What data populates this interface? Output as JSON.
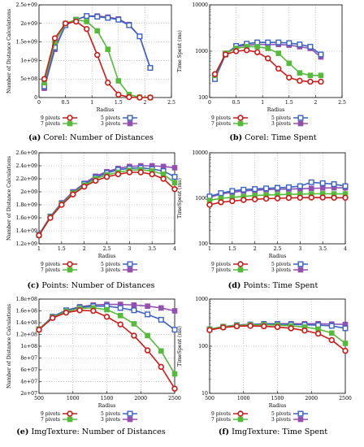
{
  "colors": {
    "9 pivots": "#cc1a1a",
    "7 pivots": "#55bb3a",
    "5 pivots": "#3a62c4",
    "3 pivots": "#9450b0",
    "axis": "#000000",
    "grid": "#9a9a9a"
  },
  "marker_shapes": {
    "9 pivots": "circle",
    "7 pivots": "square-filled",
    "5 pivots": "square-open",
    "3 pivots": "square-filled"
  },
  "chart_data": [
    {
      "id": "a",
      "type": "line",
      "caption_label": "(a)",
      "caption_text": "Corel: Number of Distances",
      "xlabel": "Radius",
      "ylabel": "Number of Distance Calculations",
      "xlim": [
        0,
        2.5
      ],
      "ylim": [
        0,
        2500000000
      ],
      "xscale": "linear",
      "yscale": "linear",
      "xticks": [
        0,
        0.5,
        1,
        1.5,
        2,
        2.5
      ],
      "xtick_labels": [
        "0",
        "0.5",
        "1",
        "1.5",
        "2",
        "2.5"
      ],
      "yticks": [
        0,
        500000000,
        1000000000,
        1500000000,
        2000000000,
        2500000000
      ],
      "ytick_labels": [
        "0",
        "5e+08",
        "1e+09",
        "1.5e+09",
        "2e+09",
        "2.5e+09"
      ],
      "grid": true,
      "legend_position": "bottom",
      "series": [
        {
          "name": "9 pivots",
          "x": [
            0.1,
            0.3,
            0.5,
            0.7,
            0.9,
            1.1,
            1.3,
            1.5,
            1.7,
            1.9,
            2.1
          ],
          "y": [
            500000000,
            1600000000,
            2000000000,
            2050000000,
            1850000000,
            1150000000,
            400000000,
            80000000,
            10000000,
            0,
            0
          ]
        },
        {
          "name": "7 pivots",
          "x": [
            0.1,
            0.3,
            0.5,
            0.7,
            0.9,
            1.1,
            1.3,
            1.5,
            1.7,
            1.9,
            2.1
          ],
          "y": [
            400000000,
            1500000000,
            2000000000,
            2100000000,
            2050000000,
            1800000000,
            1300000000,
            450000000,
            80000000,
            10000000,
            0
          ]
        },
        {
          "name": "5 pivots",
          "x": [
            0.1,
            0.3,
            0.5,
            0.7,
            0.9,
            1.1,
            1.3,
            1.5,
            1.7,
            1.9,
            2.1
          ],
          "y": [
            300000000,
            1350000000,
            1950000000,
            2100000000,
            2200000000,
            2180000000,
            2150000000,
            2100000000,
            1950000000,
            1650000000,
            800000000
          ]
        },
        {
          "name": "3 pivots",
          "x": [
            0.1,
            0.3,
            0.5,
            0.7,
            0.9,
            1.1,
            1.3,
            1.5,
            1.7,
            1.9,
            2.1
          ],
          "y": [
            250000000,
            1300000000,
            1950000000,
            2100000000,
            2200000000,
            2200000000,
            2170000000,
            2120000000,
            1970000000,
            1650000000,
            800000000
          ]
        }
      ]
    },
    {
      "id": "b",
      "type": "line",
      "caption_label": "(b)",
      "caption_text": "Corel: Time Spent",
      "xlabel": "Radius",
      "ylabel": "Time Spent (ms)",
      "xlim": [
        0,
        2.5
      ],
      "ylim": [
        100,
        10000
      ],
      "xscale": "linear",
      "yscale": "log",
      "xticks": [
        0,
        0.5,
        1,
        1.5,
        2,
        2.5
      ],
      "xtick_labels": [
        "0",
        "0.5",
        "1",
        "1.5",
        "2",
        "2.5"
      ],
      "yticks": [
        100,
        1000,
        10000
      ],
      "ytick_labels": [
        "100",
        "1000",
        "10000"
      ],
      "grid": true,
      "legend_position": "bottom",
      "series": [
        {
          "name": "9 pivots",
          "x": [
            0.1,
            0.3,
            0.5,
            0.7,
            0.9,
            1.1,
            1.3,
            1.5,
            1.7,
            1.9,
            2.1
          ],
          "y": [
            320,
            850,
            1000,
            1050,
            950,
            700,
            420,
            270,
            230,
            220,
            220
          ]
        },
        {
          "name": "7 pivots",
          "x": [
            0.1,
            0.3,
            0.5,
            0.7,
            0.9,
            1.1,
            1.3,
            1.5,
            1.7,
            1.9,
            2.1
          ],
          "y": [
            300,
            900,
            1150,
            1250,
            1250,
            1150,
            900,
            550,
            340,
            300,
            300
          ]
        },
        {
          "name": "5 pivots",
          "x": [
            0.1,
            0.3,
            0.5,
            0.7,
            0.9,
            1.1,
            1.3,
            1.5,
            1.7,
            1.9,
            2.1
          ],
          "y": [
            250,
            850,
            1300,
            1450,
            1550,
            1550,
            1550,
            1500,
            1400,
            1250,
            850
          ]
        },
        {
          "name": "3 pivots",
          "x": [
            0.1,
            0.3,
            0.5,
            0.7,
            0.9,
            1.1,
            1.3,
            1.5,
            1.7,
            1.9,
            2.1
          ],
          "y": [
            280,
            900,
            1250,
            1350,
            1400,
            1400,
            1400,
            1350,
            1250,
            1150,
            750
          ]
        }
      ]
    },
    {
      "id": "c",
      "type": "line",
      "caption_label": "(c)",
      "caption_text": "Points: Number of Distances",
      "xlabel": "Radius",
      "ylabel": "Number of Distance Calculations",
      "xlim": [
        1,
        4
      ],
      "ylim": [
        1200000000,
        2600000000
      ],
      "xscale": "linear",
      "yscale": "linear",
      "xticks": [
        1,
        1.5,
        2,
        2.5,
        3,
        3.5,
        4
      ],
      "xtick_labels": [
        "1",
        "1.5",
        "2",
        "2.5",
        "3",
        "3.5",
        "4"
      ],
      "yticks": [
        1200000000,
        1400000000,
        1600000000,
        1800000000,
        2000000000,
        2200000000,
        2400000000,
        2600000000
      ],
      "ytick_labels": [
        "1.2e+09",
        "1.4e+09",
        "1.6e+09",
        "1.8e+09",
        "2e+09",
        "2.2e+09",
        "2.4e+09",
        "2.6e+09"
      ],
      "grid": true,
      "legend_position": "bottom",
      "series": [
        {
          "name": "9 pivots",
          "x": [
            1,
            1.25,
            1.5,
            1.75,
            2,
            2.25,
            2.5,
            2.75,
            3,
            3.25,
            3.5,
            3.75,
            4
          ],
          "y": [
            1330000000,
            1600000000,
            1800000000,
            1960000000,
            2080000000,
            2170000000,
            2230000000,
            2270000000,
            2300000000,
            2300000000,
            2270000000,
            2200000000,
            2040000000
          ]
        },
        {
          "name": "7 pivots",
          "x": [
            1,
            1.25,
            1.5,
            1.75,
            2,
            2.25,
            2.5,
            2.75,
            3,
            3.25,
            3.5,
            3.75,
            4
          ],
          "y": [
            1330000000,
            1610000000,
            1810000000,
            1980000000,
            2100000000,
            2200000000,
            2260000000,
            2300000000,
            2330000000,
            2340000000,
            2320000000,
            2270000000,
            2140000000
          ]
        },
        {
          "name": "5 pivots",
          "x": [
            1,
            1.25,
            1.5,
            1.75,
            2,
            2.25,
            2.5,
            2.75,
            3,
            3.25,
            3.5,
            3.75,
            4
          ],
          "y": [
            1340000000,
            1620000000,
            1820000000,
            1990000000,
            2120000000,
            2220000000,
            2290000000,
            2340000000,
            2360000000,
            2370000000,
            2350000000,
            2320000000,
            2230000000
          ]
        },
        {
          "name": "3 pivots",
          "x": [
            1,
            1.25,
            1.5,
            1.75,
            2,
            2.25,
            2.5,
            2.75,
            3,
            3.25,
            3.5,
            3.75,
            4
          ],
          "y": [
            1340000000,
            1620000000,
            1830000000,
            2000000000,
            2130000000,
            2240000000,
            2310000000,
            2360000000,
            2390000000,
            2400000000,
            2400000000,
            2390000000,
            2370000000
          ]
        }
      ]
    },
    {
      "id": "d",
      "type": "line",
      "caption_label": "(d)",
      "caption_text": "Points: Time Spent",
      "xlabel": "Radius",
      "ylabel": "TimeSpent (ms)",
      "xlim": [
        1,
        4
      ],
      "ylim": [
        100,
        10000
      ],
      "xscale": "linear",
      "yscale": "log",
      "xticks": [
        1,
        1.5,
        2,
        2.5,
        3,
        3.5,
        4
      ],
      "xtick_labels": [
        "1",
        "1.5",
        "2",
        "2.5",
        "3",
        "3.5",
        "4"
      ],
      "yticks": [
        100,
        1000,
        10000
      ],
      "ytick_labels": [
        "100",
        "1000",
        "10000"
      ],
      "grid": true,
      "legend_position": "bottom",
      "series": [
        {
          "name": "9 pivots",
          "x": [
            1,
            1.25,
            1.5,
            1.75,
            2,
            2.25,
            2.5,
            2.75,
            3,
            3.25,
            3.5,
            3.75,
            4
          ],
          "y": [
            720,
            820,
            870,
            920,
            950,
            980,
            1000,
            1020,
            1030,
            1040,
            1040,
            1030,
            1030
          ]
        },
        {
          "name": "7 pivots",
          "x": [
            1,
            1.25,
            1.5,
            1.75,
            2,
            2.25,
            2.5,
            2.75,
            3,
            3.25,
            3.5,
            3.75,
            4
          ],
          "y": [
            900,
            1000,
            1050,
            1100,
            1150,
            1180,
            1200,
            1220,
            1240,
            1250,
            1260,
            1250,
            1250
          ]
        },
        {
          "name": "5 pivots",
          "x": [
            1,
            1.25,
            1.5,
            1.75,
            2,
            2.25,
            2.5,
            2.75,
            3,
            3.25,
            3.5,
            3.75,
            4
          ],
          "y": [
            1100,
            1300,
            1450,
            1550,
            1600,
            1650,
            1700,
            1750,
            1850,
            2250,
            2150,
            2050,
            1850
          ]
        },
        {
          "name": "3 pivots",
          "x": [
            1,
            1.25,
            1.5,
            1.75,
            2,
            2.25,
            2.5,
            2.75,
            3,
            3.25,
            3.5,
            3.75,
            4
          ],
          "y": [
            1050,
            1250,
            1350,
            1450,
            1500,
            1550,
            1580,
            1600,
            1620,
            1650,
            1680,
            1700,
            1700
          ]
        }
      ]
    },
    {
      "id": "e",
      "type": "line",
      "caption_label": "(e)",
      "caption_text": "ImgTexture: Number of Distances",
      "xlabel": "Radius",
      "ylabel": "Number of Distance Calculations",
      "xlim": [
        500,
        2500
      ],
      "ylim": [
        20000000,
        180000000
      ],
      "xscale": "linear",
      "yscale": "linear",
      "xticks": [
        500,
        1000,
        1500,
        2000,
        2500
      ],
      "xtick_labels": [
        "500",
        "1000",
        "1500",
        "2000",
        "2500"
      ],
      "yticks": [
        20000000,
        40000000,
        60000000,
        80000000,
        100000000,
        120000000,
        140000000,
        160000000,
        180000000
      ],
      "ytick_labels": [
        "2e+07",
        "4e+07",
        "6e+07",
        "8e+07",
        "1e+08",
        "1.2e+08",
        "1.4e+08",
        "1.6e+08",
        "1.8e+08"
      ],
      "grid": true,
      "legend_position": "bottom",
      "series": [
        {
          "name": "9 pivots",
          "x": [
            500,
            700,
            900,
            1100,
            1300,
            1500,
            1700,
            1900,
            2100,
            2300,
            2500
          ],
          "y": [
            128000000,
            148000000,
            157000000,
            161000000,
            160000000,
            150000000,
            137000000,
            118000000,
            93000000,
            65000000,
            28000000
          ]
        },
        {
          "name": "7 pivots",
          "x": [
            500,
            700,
            900,
            1100,
            1300,
            1500,
            1700,
            1900,
            2100,
            2300,
            2500
          ],
          "y": [
            129000000,
            149000000,
            159000000,
            164000000,
            165000000,
            162000000,
            152000000,
            138000000,
            118000000,
            92000000,
            53000000
          ]
        },
        {
          "name": "5 pivots",
          "x": [
            500,
            700,
            900,
            1100,
            1300,
            1500,
            1700,
            1900,
            2100,
            2300,
            2500
          ],
          "y": [
            129000000,
            150000000,
            161000000,
            166000000,
            168000000,
            168000000,
            165000000,
            161000000,
            154000000,
            145000000,
            128000000
          ]
        },
        {
          "name": "3 pivots",
          "x": [
            500,
            700,
            900,
            1100,
            1300,
            1500,
            1700,
            1900,
            2100,
            2300,
            2500
          ],
          "y": [
            129000000,
            150000000,
            161000000,
            167000000,
            170000000,
            171000000,
            171000000,
            170000000,
            168000000,
            165000000,
            160000000
          ]
        }
      ]
    },
    {
      "id": "f",
      "type": "line",
      "caption_label": "(f)",
      "caption_text": "ImgTexture: Time Spent",
      "xlabel": "Radius",
      "ylabel": "TimeSpent (ms)",
      "xlim": [
        500,
        2500
      ],
      "ylim": [
        10,
        1000
      ],
      "xscale": "linear",
      "yscale": "log",
      "xticks": [
        500,
        1000,
        1500,
        2000,
        2500
      ],
      "xtick_labels": [
        "500",
        "1000",
        "1500",
        "2000",
        "2500"
      ],
      "yticks": [
        10,
        100,
        1000
      ],
      "ytick_labels": [
        "10",
        "100",
        "1000"
      ],
      "grid": true,
      "legend_position": "bottom",
      "series": [
        {
          "name": "9 pivots",
          "x": [
            500,
            700,
            900,
            1100,
            1300,
            1500,
            1700,
            1900,
            2100,
            2300,
            2500
          ],
          "y": [
            220,
            250,
            265,
            270,
            265,
            255,
            240,
            215,
            185,
            135,
            80
          ]
        },
        {
          "name": "7 pivots",
          "x": [
            500,
            700,
            900,
            1100,
            1300,
            1500,
            1700,
            1900,
            2100,
            2300,
            2500
          ],
          "y": [
            230,
            260,
            275,
            285,
            285,
            280,
            270,
            255,
            230,
            190,
            115
          ]
        },
        {
          "name": "5 pivots",
          "x": [
            500,
            700,
            900,
            1100,
            1300,
            1500,
            1700,
            1900,
            2100,
            2300,
            2500
          ],
          "y": [
            230,
            260,
            280,
            290,
            295,
            295,
            290,
            285,
            280,
            270,
            240
          ]
        },
        {
          "name": "3 pivots",
          "x": [
            500,
            700,
            900,
            1100,
            1300,
            1500,
            1700,
            1900,
            2100,
            2300,
            2500
          ],
          "y": [
            230,
            260,
            280,
            290,
            300,
            300,
            300,
            300,
            300,
            295,
            290
          ]
        }
      ]
    }
  ]
}
